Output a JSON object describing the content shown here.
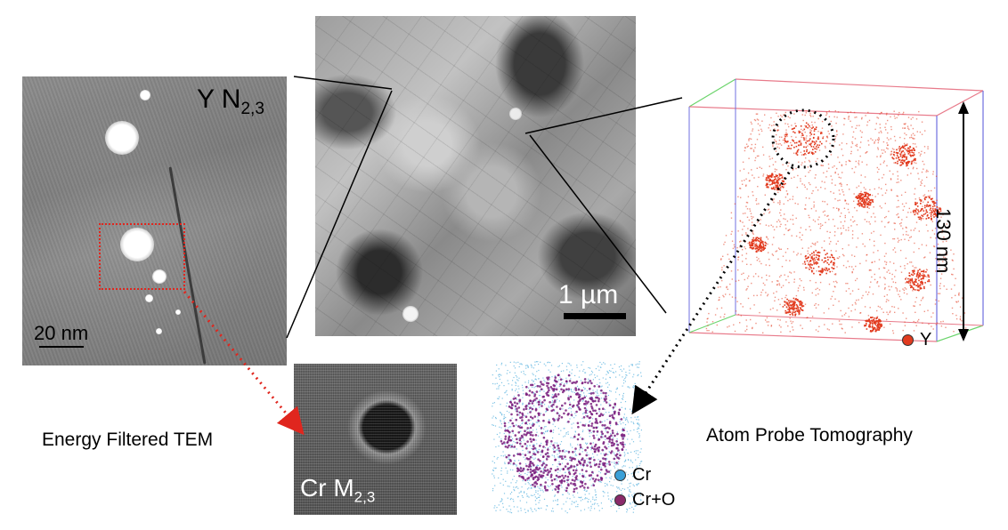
{
  "eftem_y": {
    "element": "Y N",
    "subscript": "2,3",
    "scale_label": "20 nm"
  },
  "bf_tem": {
    "scale_label": "1 µm"
  },
  "eftem_cr": {
    "element": "Cr M",
    "subscript": "2,3"
  },
  "captions": {
    "eftem": "Energy Filtered TEM",
    "apt": "Atom Probe Tomography"
  },
  "apt_3d": {
    "height_label": "130 nm",
    "legend_label": "Y",
    "legend_color": "#e23b1f"
  },
  "apt_2d": {
    "legend": [
      {
        "label": "Cr",
        "color": "#3aa0d8"
      },
      {
        "label": "Cr+O",
        "color": "#8a2a6a"
      }
    ]
  },
  "colors": {
    "arrow_red": "#e0261e",
    "apt_red": "#e23b1f",
    "cr_blue": "#7fc4e6",
    "cro_purple": "#7a1f7e"
  }
}
